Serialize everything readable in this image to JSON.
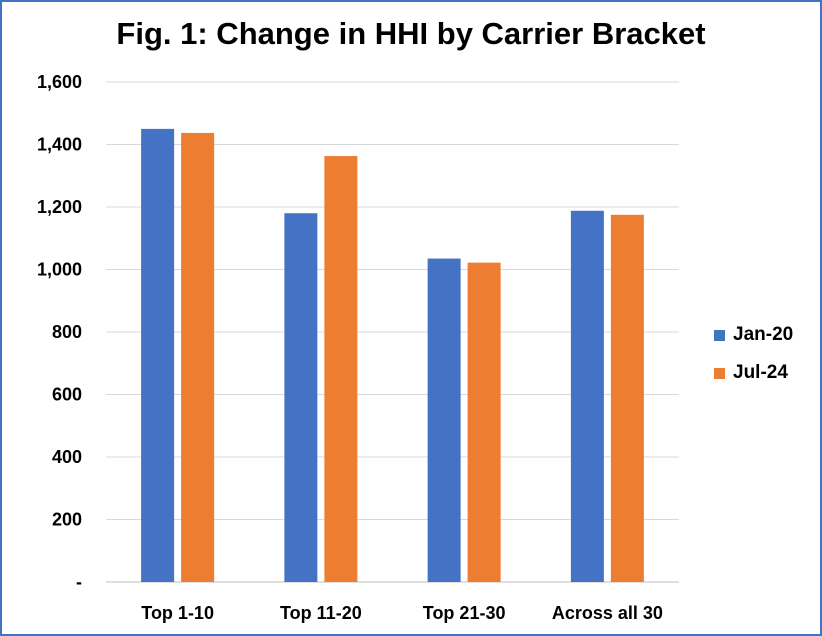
{
  "chart_data": {
    "type": "bar",
    "title": "Fig. 1: Change in HHI by Carrier Bracket",
    "categories": [
      "Top 1-10",
      "Top 11-20",
      "Top 21-30",
      "Across all 30"
    ],
    "series": [
      {
        "name": "Jan-20",
        "color": "#4472C4",
        "values": [
          1450,
          1180,
          1035,
          1188
        ]
      },
      {
        "name": "Jul-24",
        "color": "#ED7D31",
        "values": [
          1437,
          1363,
          1022,
          1175
        ]
      }
    ],
    "ylim": [
      0,
      1600
    ],
    "yticks": [
      0,
      200,
      400,
      600,
      800,
      1000,
      1200,
      1400,
      1600
    ],
    "ytick_labels": [
      "-",
      "200",
      "400",
      "600",
      "800",
      "1,000",
      "1,200",
      "1,400",
      "1,600"
    ],
    "xlabel": "",
    "ylabel": "",
    "grid": true,
    "legend_position": "right"
  }
}
